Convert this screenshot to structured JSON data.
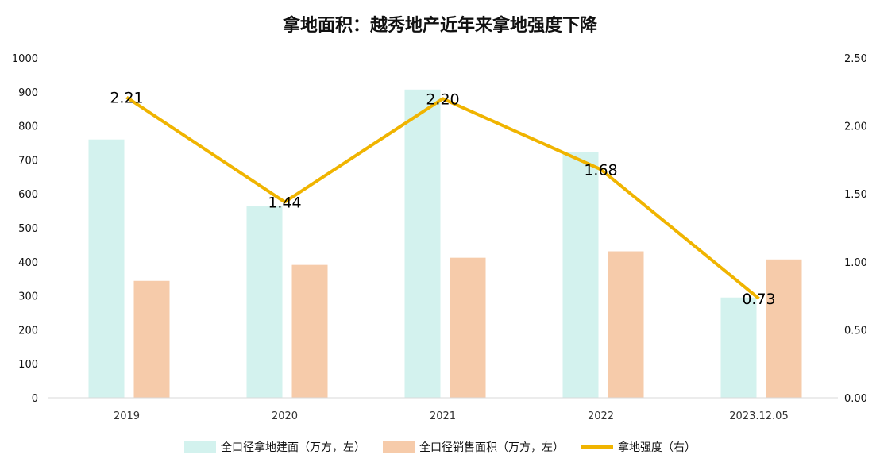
{
  "chart_data": {
    "type": "bar",
    "title": "拿地面积：越秀地产近年来拿地强度下降",
    "categories": [
      "2019",
      "2020",
      "2021",
      "2022",
      "2023.12.05"
    ],
    "y_left": {
      "ticks": [
        "0",
        "100",
        "200",
        "300",
        "400",
        "500",
        "600",
        "700",
        "800",
        "900",
        "1000"
      ],
      "ylim": [
        0,
        1000
      ]
    },
    "y_right": {
      "ticks": [
        "0.00",
        "0.50",
        "1.00",
        "1.50",
        "2.00",
        "2.50"
      ],
      "ylim": [
        0,
        2.5
      ]
    },
    "series": [
      {
        "name": "全口径拿地建面（万方，左）",
        "type": "bar",
        "axis": "left",
        "color": "#d3f2ee",
        "values": [
          760,
          563,
          907,
          723,
          295
        ]
      },
      {
        "name": "全口径销售面积（万方，左）",
        "type": "bar",
        "axis": "left",
        "color": "#f6cbaa",
        "values": [
          344,
          391,
          412,
          431,
          407
        ]
      },
      {
        "name": "拿地强度（右）",
        "type": "line",
        "axis": "right",
        "color": "#f0b400",
        "values": [
          2.21,
          1.44,
          2.2,
          1.68,
          0.73
        ],
        "labels": [
          "2.21",
          "1.44",
          "2.20",
          "1.68",
          "0.73"
        ]
      }
    ],
    "grid": false,
    "legend_position": "bottom"
  }
}
